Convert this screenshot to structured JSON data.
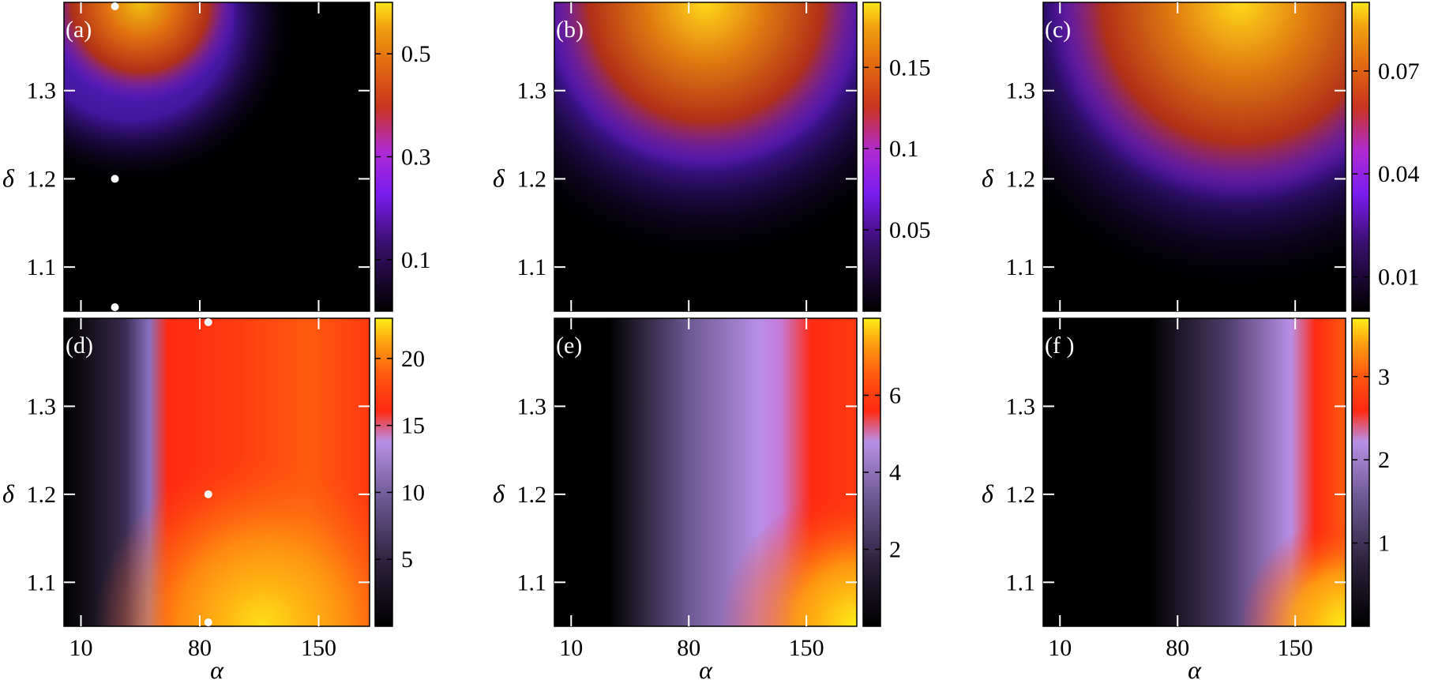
{
  "chart_data": [
    {
      "type": "heatmap",
      "panel_label": "(a)",
      "ylabel": "δ",
      "xlabel": "",
      "x_tick_labels": [
        "10",
        "80",
        "150"
      ],
      "x_ticks": [
        10,
        80,
        150
      ],
      "y_tick_labels": [
        "1.1",
        "1.2",
        "1.3"
      ],
      "y_ticks": [
        1.1,
        1.2,
        1.3
      ],
      "xlim": [
        0,
        180
      ],
      "ylim": [
        1.05,
        1.4
      ],
      "colorscale": "black-purple-red-orange-yellow",
      "colorbar_tick_labels": [
        "0.1",
        "0.3",
        "0.5"
      ],
      "colorbar_ticks": [
        0.1,
        0.3,
        0.5
      ],
      "colorbar_range": [
        0,
        0.6
      ],
      "markers": [
        {
          "x": 30,
          "y": 1.4
        },
        {
          "x": 30,
          "y": 1.2
        },
        {
          "x": 30,
          "y": 1.05
        }
      ]
    },
    {
      "type": "heatmap",
      "panel_label": "(b)",
      "ylabel": "δ",
      "xlabel": "",
      "x_tick_labels": [
        "10",
        "80",
        "150"
      ],
      "x_ticks": [
        10,
        80,
        150
      ],
      "y_tick_labels": [
        "1.1",
        "1.2",
        "1.3"
      ],
      "y_ticks": [
        1.1,
        1.2,
        1.3
      ],
      "xlim": [
        0,
        180
      ],
      "ylim": [
        1.05,
        1.4
      ],
      "colorscale": "black-purple-red-orange-yellow",
      "colorbar_tick_labels": [
        "0.05",
        "0.1",
        "0.15"
      ],
      "colorbar_ticks": [
        0.05,
        0.1,
        0.15
      ],
      "colorbar_range": [
        0,
        0.19
      ],
      "markers": []
    },
    {
      "type": "heatmap",
      "panel_label": "(c)",
      "ylabel": "δ",
      "xlabel": "",
      "x_tick_labels": [
        "10",
        "80",
        "150"
      ],
      "x_ticks": [
        10,
        80,
        150
      ],
      "y_tick_labels": [
        "1.1",
        "1.2",
        "1.3"
      ],
      "y_ticks": [
        1.1,
        1.2,
        1.3
      ],
      "xlim": [
        0,
        180
      ],
      "ylim": [
        1.05,
        1.4
      ],
      "colorscale": "black-purple-red-orange-yellow",
      "colorbar_tick_labels": [
        "0.01",
        "0.04",
        "0.07"
      ],
      "colorbar_ticks": [
        0.01,
        0.04,
        0.07
      ],
      "colorbar_range": [
        0,
        0.09
      ],
      "markers": []
    },
    {
      "type": "heatmap",
      "panel_label": "(d)",
      "ylabel": "δ",
      "xlabel": "α",
      "x_tick_labels": [
        "10",
        "80",
        "150"
      ],
      "x_ticks": [
        10,
        80,
        150
      ],
      "y_tick_labels": [
        "1.1",
        "1.2",
        "1.3"
      ],
      "y_ticks": [
        1.1,
        1.2,
        1.3
      ],
      "xlim": [
        0,
        180
      ],
      "ylim": [
        1.05,
        1.4
      ],
      "colorscale": "black-lavender-red-orange-yellow",
      "colorbar_tick_labels": [
        "5",
        "10",
        "15",
        "20"
      ],
      "colorbar_ticks": [
        5,
        10,
        15,
        20
      ],
      "colorbar_range": [
        0,
        23
      ],
      "markers": [
        {
          "x": 85,
          "y": 1.4
        },
        {
          "x": 85,
          "y": 1.2
        },
        {
          "x": 85,
          "y": 1.05
        }
      ]
    },
    {
      "type": "heatmap",
      "panel_label": "(e)",
      "ylabel": "δ",
      "xlabel": "α",
      "x_tick_labels": [
        "10",
        "80",
        "150"
      ],
      "x_ticks": [
        10,
        80,
        150
      ],
      "y_tick_labels": [
        "1.1",
        "1.2",
        "1.3"
      ],
      "y_ticks": [
        1.1,
        1.2,
        1.3
      ],
      "xlim": [
        0,
        180
      ],
      "ylim": [
        1.05,
        1.4
      ],
      "colorscale": "black-lavender-red-orange-yellow",
      "colorbar_tick_labels": [
        "2",
        "4",
        "6"
      ],
      "colorbar_ticks": [
        2,
        4,
        6
      ],
      "colorbar_range": [
        0,
        8
      ],
      "markers": []
    },
    {
      "type": "heatmap",
      "panel_label": "(f )",
      "ylabel": "δ",
      "xlabel": "α",
      "x_tick_labels": [
        "10",
        "80",
        "150"
      ],
      "x_ticks": [
        10,
        80,
        150
      ],
      "y_tick_labels": [
        "1.1",
        "1.2",
        "1.3"
      ],
      "y_ticks": [
        1.1,
        1.2,
        1.3
      ],
      "xlim": [
        0,
        180
      ],
      "ylim": [
        1.05,
        1.4
      ],
      "colorscale": "black-lavender-red-orange-yellow",
      "colorbar_tick_labels": [
        "1",
        "2",
        "3"
      ],
      "colorbar_ticks": [
        1,
        2,
        3
      ],
      "colorbar_range": [
        0,
        3.7
      ],
      "markers": []
    }
  ]
}
